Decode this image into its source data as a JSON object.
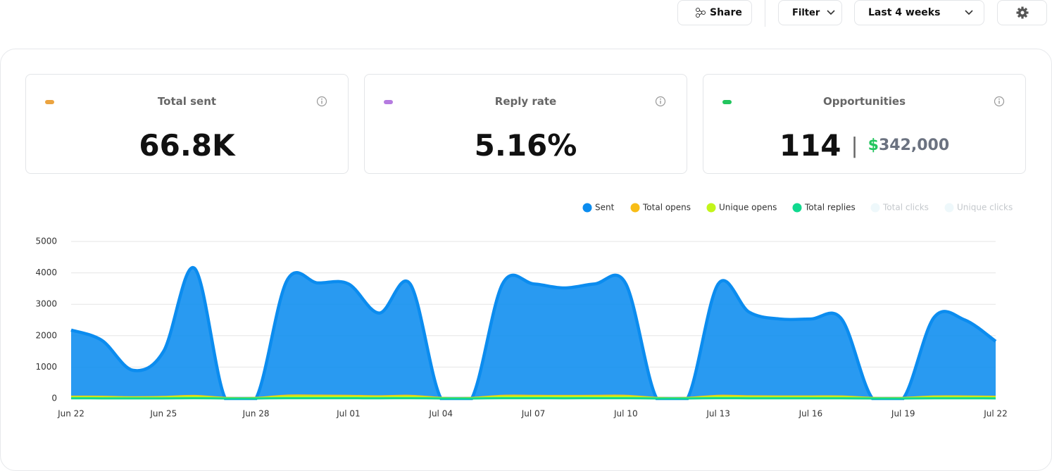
{
  "toolbar": {
    "share": "Share",
    "filter": "Filter",
    "range": "Last 4 weeks"
  },
  "cards": [
    {
      "title": "Total sent",
      "value": "66.8K",
      "color": "#eba33f"
    },
    {
      "title": "Reply rate",
      "value": "5.16%",
      "color": "#b57be0"
    },
    {
      "title": "Opportunities",
      "value": "114",
      "currency": "$",
      "amount": "342,000",
      "color": "#22c55e"
    }
  ],
  "chart_data": {
    "type": "area",
    "categories": [
      "Jun 22",
      null,
      null,
      "Jun 25",
      null,
      null,
      "Jun 28",
      null,
      null,
      "Jul 01",
      null,
      null,
      "Jul 04",
      null,
      null,
      "Jul 07",
      null,
      null,
      "Jul 10",
      null,
      null,
      "Jul 13",
      null,
      null,
      "Jul 16",
      null,
      null,
      "Jul 19",
      null,
      null,
      "Jul 22"
    ],
    "series": [
      {
        "name": "Sent",
        "color": "#0b8cef",
        "values": [
          2180,
          1850,
          900,
          1500,
          4150,
          0,
          0,
          3750,
          3680,
          3650,
          2720,
          3650,
          0,
          0,
          3650,
          3650,
          3520,
          3650,
          3650,
          0,
          0,
          3650,
          2750,
          2530,
          2530,
          2530,
          0,
          0,
          2580,
          2500,
          1820
        ]
      },
      {
        "name": "Total opens",
        "color": "#f8bd16",
        "values": [
          60,
          55,
          40,
          50,
          80,
          20,
          20,
          90,
          90,
          85,
          70,
          85,
          20,
          20,
          85,
          85,
          80,
          85,
          85,
          20,
          20,
          85,
          70,
          65,
          65,
          65,
          20,
          20,
          65,
          65,
          55
        ]
      },
      {
        "name": "Unique opens",
        "color": "#c3f51a",
        "values": [
          40,
          35,
          25,
          35,
          55,
          10,
          10,
          60,
          60,
          55,
          45,
          55,
          10,
          10,
          55,
          55,
          55,
          55,
          55,
          10,
          10,
          55,
          45,
          45,
          45,
          45,
          10,
          10,
          45,
          45,
          35
        ]
      },
      {
        "name": "Total replies",
        "color": "#10d98f",
        "values": [
          5,
          4,
          2,
          3,
          8,
          1,
          1,
          9,
          8,
          8,
          6,
          8,
          1,
          1,
          8,
          8,
          7,
          8,
          8,
          1,
          1,
          8,
          6,
          5,
          5,
          5,
          1,
          1,
          5,
          5,
          4
        ]
      },
      {
        "name": "Total clicks",
        "color": "#eef8fb",
        "hidden": true,
        "values": [
          0,
          0,
          0,
          0,
          0,
          0,
          0,
          0,
          0,
          0,
          0,
          0,
          0,
          0,
          0,
          0,
          0,
          0,
          0,
          0,
          0,
          0,
          0,
          0,
          0,
          0,
          0,
          0,
          0,
          0,
          0
        ]
      },
      {
        "name": "Unique clicks",
        "color": "#eef8fb",
        "hidden": true,
        "values": [
          0,
          0,
          0,
          0,
          0,
          0,
          0,
          0,
          0,
          0,
          0,
          0,
          0,
          0,
          0,
          0,
          0,
          0,
          0,
          0,
          0,
          0,
          0,
          0,
          0,
          0,
          0,
          0,
          0,
          0,
          0
        ]
      }
    ],
    "ylim": [
      0,
      5000
    ],
    "yticks": [
      0,
      1000,
      2000,
      3000,
      4000,
      5000
    ],
    "grid": true
  }
}
